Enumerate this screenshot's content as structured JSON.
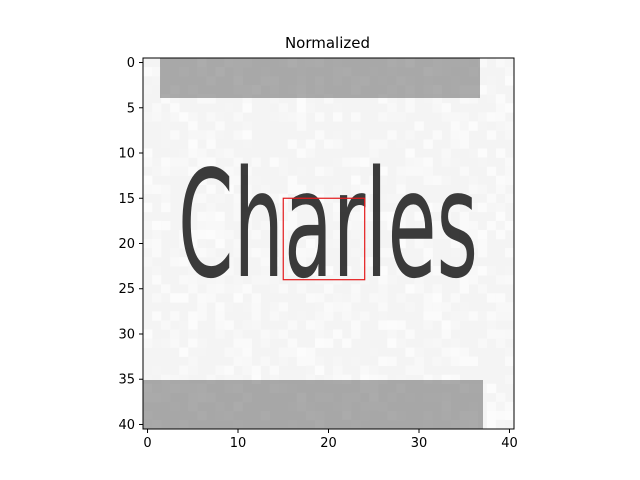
{
  "chart_data": {
    "type": "heatmap",
    "title": "Normalized",
    "colormap": "gray",
    "image_size": [
      41,
      41
    ],
    "xlim": [
      -0.5,
      40.5
    ],
    "ylim": [
      40.5,
      -0.5
    ],
    "x_ticks": [
      0,
      10,
      20,
      30,
      40
    ],
    "y_ticks": [
      0,
      5,
      10,
      15,
      20,
      25,
      30,
      35,
      40
    ],
    "x_tick_labels": [
      "0",
      "10",
      "20",
      "30",
      "40"
    ],
    "y_tick_labels": [
      "0",
      "5",
      "10",
      "15",
      "20",
      "25",
      "30",
      "35",
      "40"
    ],
    "image_text": "Charles",
    "highlight_box": {
      "x0": 15,
      "y0": 15,
      "x1": 24,
      "y1": 24,
      "color": "#e41a1c"
    }
  }
}
